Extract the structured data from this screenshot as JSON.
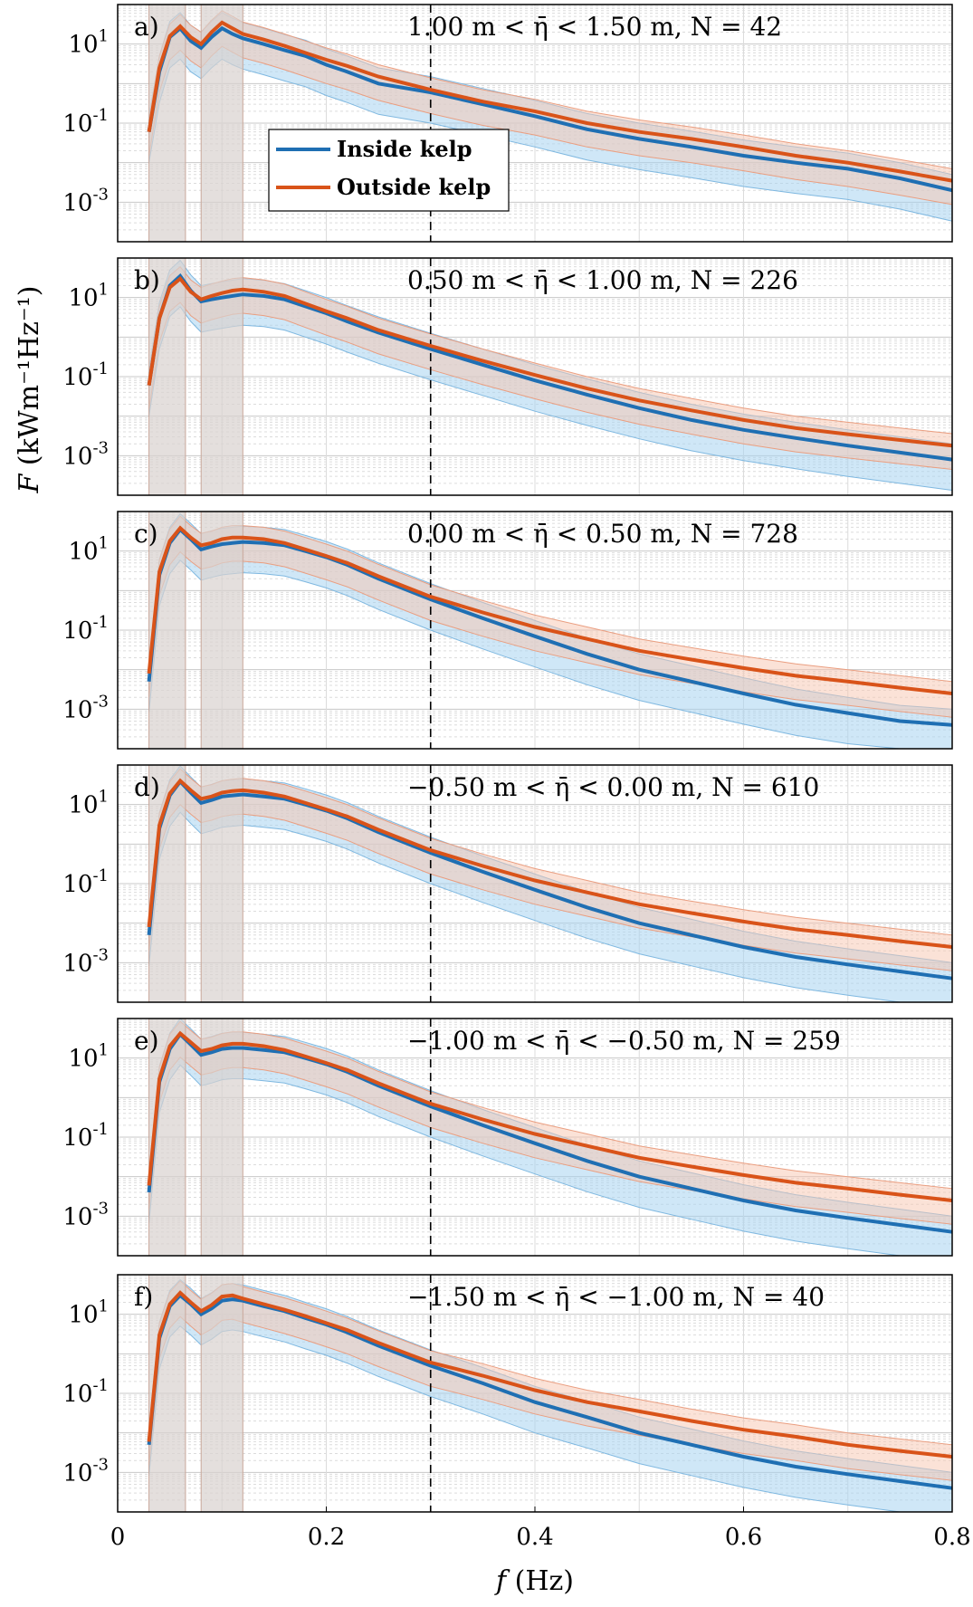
{
  "chart_data": {
    "type": "line",
    "x_axis": {
      "label_var": "f",
      "label_unit": "(Hz)",
      "range": [
        0,
        0.8
      ],
      "ticks": [
        0,
        0.2,
        0.4,
        0.6,
        0.8
      ],
      "tick_labels": [
        "0",
        "0.2",
        "0.4",
        "0.6",
        "0.8"
      ]
    },
    "y_axis": {
      "label_var": "F",
      "label_unit": "(kWm⁻¹Hz⁻¹)",
      "scale": "log",
      "range_log10": [
        -4,
        2
      ],
      "ticks": [
        {
          "base": "10",
          "exp": "1",
          "log": 1
        },
        {
          "base": "10",
          "exp": "-1",
          "log": -1
        },
        {
          "base": "10",
          "exp": "-3",
          "log": -3
        }
      ]
    },
    "reference_line_x": 0.3,
    "legend": {
      "position": "upper-left, panel a",
      "items": [
        {
          "label": "Inside kelp",
          "color": "#1f6fb3"
        },
        {
          "label": "Outside kelp",
          "color": "#d95319"
        }
      ]
    },
    "series_x": [
      0.03,
      0.04,
      0.05,
      0.06,
      0.07,
      0.08,
      0.09,
      0.1,
      0.11,
      0.12,
      0.14,
      0.16,
      0.18,
      0.2,
      0.22,
      0.25,
      0.3,
      0.35,
      0.4,
      0.45,
      0.5,
      0.55,
      0.6,
      0.65,
      0.7,
      0.75,
      0.8
    ],
    "panels": [
      {
        "id": "a",
        "tag": "a)",
        "annotation": "1.00 m < η̄ < 1.50 m, N = 42",
        "inside": [
          0.06,
          2,
          15,
          25,
          12,
          8,
          15,
          25,
          18,
          14,
          10,
          7,
          5,
          3,
          2,
          1,
          0.6,
          0.3,
          0.15,
          0.07,
          0.04,
          0.025,
          0.015,
          0.01,
          0.007,
          0.004,
          0.002
        ],
        "outside": [
          0.06,
          2.5,
          16,
          28,
          15,
          10,
          20,
          35,
          25,
          18,
          13,
          9,
          6,
          4,
          2.8,
          1.5,
          0.7,
          0.35,
          0.2,
          0.1,
          0.06,
          0.04,
          0.025,
          0.015,
          0.01,
          0.006,
          0.0035
        ]
      },
      {
        "id": "b",
        "tag": "b)",
        "annotation": "0.50 m < η̄ < 1.00 m, N = 226",
        "inside": [
          0.06,
          3,
          20,
          35,
          15,
          8,
          9,
          10,
          11,
          12,
          11,
          9,
          6,
          4,
          2.5,
          1.3,
          0.5,
          0.2,
          0.08,
          0.035,
          0.016,
          0.008,
          0.0045,
          0.0028,
          0.0018,
          0.0012,
          0.0008
        ],
        "outside": [
          0.06,
          3,
          18,
          30,
          14,
          9,
          11,
          13,
          15,
          16,
          14,
          11,
          7,
          4.5,
          3,
          1.5,
          0.6,
          0.25,
          0.11,
          0.05,
          0.025,
          0.014,
          0.008,
          0.005,
          0.0035,
          0.0025,
          0.0018
        ]
      },
      {
        "id": "c",
        "tag": "c)",
        "annotation": "0.00 m < η̄ < 0.50 m, N = 728",
        "inside": [
          0.005,
          2.5,
          16,
          35,
          20,
          11,
          13,
          15,
          16,
          17,
          16,
          14,
          10,
          7,
          4.5,
          2,
          0.6,
          0.2,
          0.07,
          0.025,
          0.01,
          0.005,
          0.0025,
          0.0013,
          0.0008,
          0.0005,
          0.0004
        ],
        "outside": [
          0.008,
          3,
          18,
          38,
          22,
          14,
          16,
          20,
          22,
          22,
          20,
          16,
          11,
          7.5,
          5,
          2.3,
          0.7,
          0.28,
          0.12,
          0.06,
          0.03,
          0.018,
          0.011,
          0.007,
          0.005,
          0.0035,
          0.0025
        ]
      },
      {
        "id": "d",
        "tag": "d)",
        "annotation": "−0.50 m < η̄ < 0.00 m, N = 610",
        "inside": [
          0.005,
          2.5,
          17,
          38,
          20,
          11,
          13,
          16,
          17,
          18,
          16,
          14,
          10,
          7,
          4.5,
          2,
          0.6,
          0.2,
          0.07,
          0.025,
          0.01,
          0.005,
          0.0025,
          0.0014,
          0.0009,
          0.0006,
          0.0004
        ],
        "outside": [
          0.008,
          3,
          19,
          40,
          23,
          14,
          16,
          20,
          22,
          23,
          20,
          16,
          11,
          7.5,
          5,
          2.3,
          0.7,
          0.28,
          0.12,
          0.06,
          0.03,
          0.018,
          0.011,
          0.007,
          0.005,
          0.0035,
          0.0025
        ]
      },
      {
        "id": "e",
        "tag": "e)",
        "annotation": "−1.00 m < η̄ < −0.50 m, N = 259",
        "inside": [
          0.004,
          2.5,
          17,
          40,
          22,
          12,
          14,
          17,
          18,
          18,
          16,
          14,
          10,
          7,
          4.5,
          2,
          0.6,
          0.2,
          0.07,
          0.025,
          0.01,
          0.005,
          0.0025,
          0.0014,
          0.0009,
          0.0006,
          0.0004
        ],
        "outside": [
          0.006,
          3,
          20,
          42,
          25,
          15,
          17,
          21,
          23,
          23,
          20,
          16,
          11,
          7.5,
          5,
          2.3,
          0.7,
          0.28,
          0.12,
          0.06,
          0.03,
          0.018,
          0.011,
          0.007,
          0.005,
          0.0035,
          0.0025
        ]
      },
      {
        "id": "f",
        "tag": "f)",
        "annotation": "−1.50 m < η̄ < −1.00 m, N = 40",
        "inside": [
          0.005,
          2.5,
          16,
          30,
          18,
          10,
          14,
          22,
          24,
          22,
          16,
          12,
          8,
          5.5,
          3.5,
          1.6,
          0.5,
          0.18,
          0.06,
          0.025,
          0.01,
          0.005,
          0.0025,
          0.0014,
          0.0009,
          0.0006,
          0.0004
        ],
        "outside": [
          0.006,
          3,
          18,
          35,
          20,
          12,
          17,
          28,
          30,
          25,
          18,
          13,
          9,
          6,
          4,
          1.9,
          0.6,
          0.28,
          0.12,
          0.06,
          0.035,
          0.02,
          0.012,
          0.008,
          0.005,
          0.0035,
          0.0025
        ]
      }
    ]
  },
  "colors": {
    "inside_line": "#1f6fb3",
    "inside_fill": "#a8d4f0",
    "outside_line": "#d95319",
    "outside_fill": "#f7c5b0",
    "overlap_fill": "#d9d2cf"
  }
}
